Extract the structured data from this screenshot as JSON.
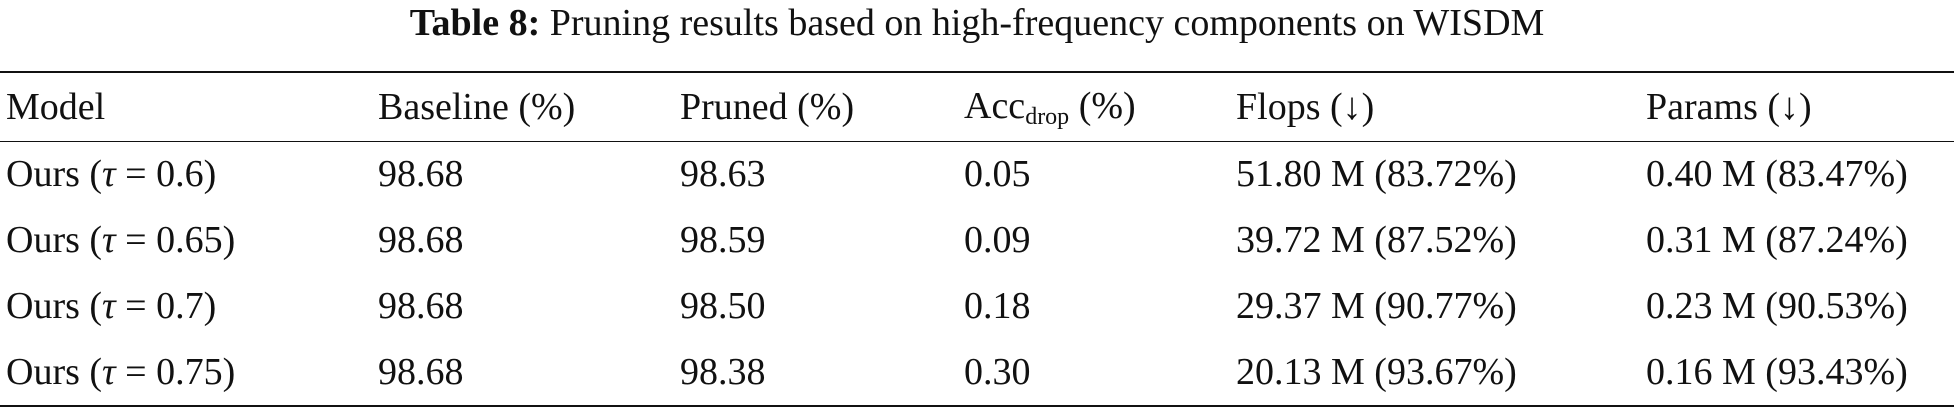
{
  "caption": {
    "label": "Table 8:",
    "text": "Pruning results based on high-frequency components on WISDM"
  },
  "table": {
    "headers": {
      "model": "Model",
      "baseline": "Baseline (%)",
      "pruned": "Pruned (%)",
      "acc_main": "Acc",
      "acc_sub": "drop",
      "acc_unit": " (%)",
      "flops": "Flops (↓)",
      "params": "Params (↓)"
    },
    "rows": [
      {
        "model_prefix": "Ours (",
        "tau_symbol": "τ",
        "tau_value": " = 0.6)",
        "baseline": "98.68",
        "pruned": "98.63",
        "acc_drop": "0.05",
        "flops": "51.80 M (83.72%)",
        "params": "0.40 M (83.47%)"
      },
      {
        "model_prefix": "Ours (",
        "tau_symbol": "τ",
        "tau_value": " = 0.65)",
        "baseline": "98.68",
        "pruned": "98.59",
        "acc_drop": "0.09",
        "flops": "39.72 M (87.52%)",
        "params": "0.31 M (87.24%)"
      },
      {
        "model_prefix": "Ours (",
        "tau_symbol": "τ",
        "tau_value": " = 0.7)",
        "baseline": "98.68",
        "pruned": "98.50",
        "acc_drop": "0.18",
        "flops": "29.37 M (90.77%)",
        "params": "0.23 M (90.53%)"
      },
      {
        "model_prefix": "Ours (",
        "tau_symbol": "τ",
        "tau_value": " = 0.75)",
        "baseline": "98.68",
        "pruned": "98.38",
        "acc_drop": "0.30",
        "flops": "20.13 M (93.67%)",
        "params": "0.16 M (93.43%)"
      }
    ]
  }
}
